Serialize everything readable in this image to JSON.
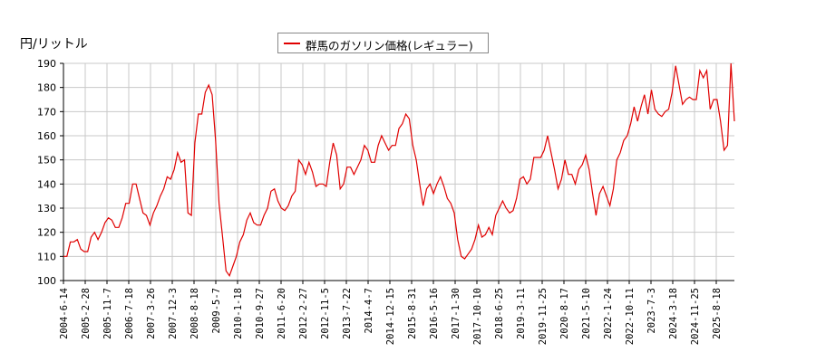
{
  "chart_data": {
    "type": "line",
    "title": "",
    "ylabel": "円/リットル",
    "xlabel": "",
    "ylim": [
      100,
      190
    ],
    "yticks": [
      100,
      110,
      120,
      130,
      140,
      150,
      160,
      170,
      180,
      190
    ],
    "grid": true,
    "legend_position": "top-center",
    "x_tick_labels": [
      "2004-6-14",
      "2005-2-28",
      "2005-11-7",
      "2006-7-18",
      "2007-3-26",
      "2007-12-3",
      "2008-8-18",
      "2009-5-7",
      "2010-1-18",
      "2010-9-27",
      "2011-6-20",
      "2012-2-27",
      "2012-11-5",
      "2013-7-22",
      "2014-4-7",
      "2014-12-15",
      "2015-8-31",
      "2016-5-16",
      "2017-1-30",
      "2017-10-10",
      "2018-6-25",
      "2019-3-11",
      "2019-11-25",
      "2020-8-17",
      "2021-5-10",
      "2022-1-24",
      "2022-10-11",
      "2023-7-3",
      "2024-3-18",
      "2024-11-25",
      "2025-8-18"
    ],
    "series": [
      {
        "name": "群馬のガソリン価格(レギュラー)",
        "color": "#e00000",
        "points": [
          [
            "2004-6-14",
            110
          ],
          [
            "2004-8",
            110
          ],
          [
            "2004-9",
            116
          ],
          [
            "2004-11",
            116
          ],
          [
            "2005-1",
            117
          ],
          [
            "2005-2",
            113
          ],
          [
            "2005-4",
            112
          ],
          [
            "2005-5",
            112
          ],
          [
            "2005-6",
            118
          ],
          [
            "2005-8",
            120
          ],
          [
            "2005-9",
            117
          ],
          [
            "2005-11",
            120
          ],
          [
            "2006-1",
            124
          ],
          [
            "2006-3",
            126
          ],
          [
            "2006-5",
            125
          ],
          [
            "2006-6",
            122
          ],
          [
            "2006-8",
            122
          ],
          [
            "2006-10",
            126
          ],
          [
            "2006-12",
            132
          ],
          [
            "2007-2",
            132
          ],
          [
            "2007-3",
            140
          ],
          [
            "2007-5",
            140
          ],
          [
            "2007-7",
            134
          ],
          [
            "2007-8",
            128
          ],
          [
            "2007-10",
            127
          ],
          [
            "2007-12",
            123
          ],
          [
            "2008-2",
            128
          ],
          [
            "2008-3",
            131
          ],
          [
            "2008-5",
            135
          ],
          [
            "2008-6",
            138
          ],
          [
            "2008-7",
            143
          ],
          [
            "2008-9",
            142
          ],
          [
            "2008-10",
            146
          ],
          [
            "2008-11",
            153
          ],
          [
            "2008-12",
            149
          ],
          [
            "2009-1",
            150
          ],
          [
            "2009-2",
            128
          ],
          [
            "2009-3",
            127
          ],
          [
            "2009-4",
            157
          ],
          [
            "2009-5",
            169
          ],
          [
            "2009-6",
            169
          ],
          [
            "2009-7",
            178
          ],
          [
            "2009-8",
            181
          ],
          [
            "2009-9",
            177
          ],
          [
            "2009-10",
            158
          ],
          [
            "2009-11",
            132
          ],
          [
            "2009-12",
            118
          ],
          [
            "2010-1",
            104
          ],
          [
            "2010-2",
            102
          ],
          [
            "2010-3",
            106
          ],
          [
            "2010-5",
            110
          ],
          [
            "2010-6",
            116
          ],
          [
            "2010-8",
            119
          ],
          [
            "2010-10",
            125
          ],
          [
            "2010-11",
            128
          ],
          [
            "2010-12",
            124
          ],
          [
            "2011-2",
            123
          ],
          [
            "2011-3",
            123
          ],
          [
            "2011-4",
            127
          ],
          [
            "2011-6",
            130
          ],
          [
            "2011-7",
            137
          ],
          [
            "2011-8",
            138
          ],
          [
            "2011-10",
            133
          ],
          [
            "2011-11",
            130
          ],
          [
            "2012-1",
            129
          ],
          [
            "2012-3",
            131
          ],
          [
            "2012-5",
            135
          ],
          [
            "2012-7",
            137
          ],
          [
            "2012-8",
            150
          ],
          [
            "2012-9",
            148
          ],
          [
            "2012-11",
            144
          ],
          [
            "2012-12",
            149
          ],
          [
            "2013-1",
            145
          ],
          [
            "2013-3",
            139
          ],
          [
            "2013-4",
            140
          ],
          [
            "2013-6",
            140
          ],
          [
            "2013-7",
            139
          ],
          [
            "2013-8",
            149
          ],
          [
            "2013-9",
            157
          ],
          [
            "2013-11",
            152
          ],
          [
            "2014-1",
            138
          ],
          [
            "2014-2",
            140
          ],
          [
            "2014-4",
            147
          ],
          [
            "2014-5",
            147
          ],
          [
            "2014-7",
            144
          ],
          [
            "2014-8",
            147
          ],
          [
            "2014-10",
            150
          ],
          [
            "2014-11",
            156
          ],
          [
            "2014-12",
            154
          ],
          [
            "2015-2",
            149
          ],
          [
            "2015-3",
            149
          ],
          [
            "2015-5",
            156
          ],
          [
            "2015-6",
            160
          ],
          [
            "2015-8",
            157
          ],
          [
            "2015-9",
            154
          ],
          [
            "2015-11",
            156
          ],
          [
            "2016-1",
            156
          ],
          [
            "2016-2",
            163
          ],
          [
            "2016-4",
            165
          ],
          [
            "2016-5",
            169
          ],
          [
            "2016-7",
            167
          ],
          [
            "2016-9",
            156
          ],
          [
            "2016-10",
            150
          ],
          [
            "2016-11",
            140
          ],
          [
            "2017-1",
            131
          ],
          [
            "2017-2",
            138
          ],
          [
            "2017-4",
            140
          ],
          [
            "2017-5",
            136
          ],
          [
            "2017-7",
            140
          ],
          [
            "2017-9",
            143
          ],
          [
            "2017-10",
            139
          ],
          [
            "2017-12",
            134
          ],
          [
            "2018-1",
            132
          ],
          [
            "2018-3",
            128
          ],
          [
            "2018-4",
            117
          ],
          [
            "2018-5",
            110
          ],
          [
            "2018-6",
            109
          ],
          [
            "2018-7",
            111
          ],
          [
            "2018-9",
            113
          ],
          [
            "2018-10",
            117
          ],
          [
            "2018-11",
            123
          ],
          [
            "2019-1",
            118
          ],
          [
            "2019-2",
            119
          ],
          [
            "2019-4",
            122
          ],
          [
            "2019-5",
            119
          ],
          [
            "2019-6",
            127
          ],
          [
            "2019-8",
            130
          ],
          [
            "2019-9",
            133
          ],
          [
            "2019-10",
            130
          ],
          [
            "2019-12",
            128
          ],
          [
            "2020-2",
            129
          ],
          [
            "2020-3",
            134
          ],
          [
            "2020-5",
            142
          ],
          [
            "2020-6",
            143
          ],
          [
            "2020-8",
            140
          ],
          [
            "2020-9",
            142
          ],
          [
            "2020-11",
            151
          ],
          [
            "2021-1",
            151
          ],
          [
            "2021-2",
            151
          ],
          [
            "2021-3",
            154
          ],
          [
            "2021-4",
            160
          ],
          [
            "2021-5",
            153
          ],
          [
            "2021-6",
            146
          ],
          [
            "2021-7",
            138
          ],
          [
            "2021-9",
            142
          ],
          [
            "2021-10",
            150
          ],
          [
            "2021-11",
            144
          ],
          [
            "2022-1",
            144
          ],
          [
            "2022-2",
            140
          ],
          [
            "2022-3",
            146
          ],
          [
            "2022-5",
            148
          ],
          [
            "2022-6",
            152
          ],
          [
            "2022-7",
            146
          ],
          [
            "2022-8",
            136
          ],
          [
            "2022-9",
            127
          ],
          [
            "2022-10",
            136
          ],
          [
            "2022-11",
            139
          ],
          [
            "2023-1",
            135
          ],
          [
            "2023-2",
            131
          ],
          [
            "2023-4",
            138
          ],
          [
            "2023-6",
            150
          ],
          [
            "2023-7",
            153
          ],
          [
            "2023-8",
            158
          ],
          [
            "2023-10",
            160
          ],
          [
            "2023-11",
            165
          ],
          [
            "2024-1",
            172
          ],
          [
            "2024-2",
            166
          ],
          [
            "2024-3",
            172
          ],
          [
            "2024-4",
            177
          ],
          [
            "2024-5",
            169
          ],
          [
            "2024-6",
            179
          ],
          [
            "2024-7",
            171
          ],
          [
            "2024-9",
            169
          ],
          [
            "2024-11",
            168
          ],
          [
            "2025-1",
            170
          ],
          [
            "2025-2",
            171
          ],
          [
            "2025-4",
            178
          ],
          [
            "2025-5",
            189
          ],
          [
            "2025-6",
            181
          ],
          [
            "2025-7",
            173
          ],
          [
            "2025-8",
            175
          ],
          [
            "2025-10",
            176
          ],
          [
            "2025-12",
            175
          ],
          [
            "2026-2",
            175
          ],
          [
            "2026-3",
            187
          ],
          [
            "2026-4",
            184
          ],
          [
            "2026-6",
            187
          ],
          [
            "2026-7",
            171
          ],
          [
            "2026-8",
            175
          ],
          [
            "2026-10",
            175
          ],
          [
            "2026-11",
            166
          ],
          [
            "2026-12",
            154
          ],
          [
            "2027-1",
            156
          ],
          [
            "2027-2",
            190
          ],
          [
            "2027-2b",
            166
          ]
        ]
      }
    ]
  },
  "legend": {
    "label": "群馬のガソリン価格(レギュラー)",
    "color": "#e00000"
  },
  "axis": {
    "y_title": "円/リットル"
  }
}
